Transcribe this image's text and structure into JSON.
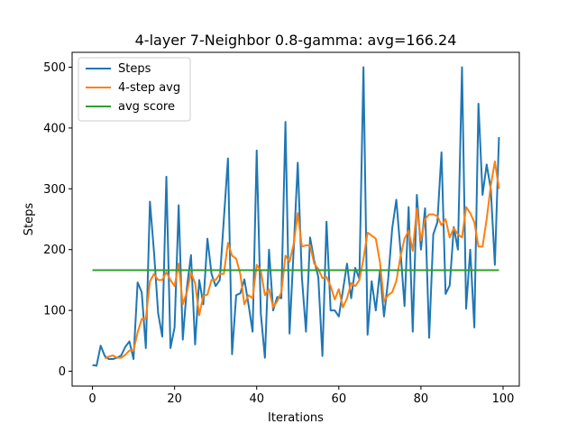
{
  "chart_data": {
    "type": "line",
    "title": "4-layer 7-Neighbor 0.8-gamma: avg=166.24",
    "xlabel": "Iterations",
    "ylabel": "Steps",
    "xlim": [
      -4.95,
      103.95
    ],
    "ylim": [
      -24.5,
      524.5
    ],
    "xticks": [
      0,
      20,
      40,
      60,
      80,
      100
    ],
    "yticks": [
      0,
      100,
      200,
      300,
      400,
      500
    ],
    "grid": false,
    "legend_position": "top-left",
    "series": [
      {
        "name": "Steps",
        "color": "#1f77b4",
        "x": [
          0,
          1,
          2,
          3,
          4,
          5,
          6,
          7,
          8,
          9,
          10,
          11,
          12,
          13,
          14,
          15,
          16,
          17,
          18,
          19,
          20,
          21,
          22,
          23,
          24,
          25,
          26,
          27,
          28,
          29,
          30,
          31,
          32,
          33,
          34,
          35,
          36,
          37,
          38,
          39,
          40,
          41,
          42,
          43,
          44,
          45,
          46,
          47,
          48,
          49,
          50,
          51,
          52,
          53,
          54,
          55,
          56,
          57,
          58,
          59,
          60,
          61,
          62,
          63,
          64,
          65,
          66,
          67,
          68,
          69,
          70,
          71,
          72,
          73,
          74,
          75,
          76,
          77,
          78,
          79,
          80,
          81,
          82,
          83,
          84,
          85,
          86,
          87,
          88,
          89,
          90,
          91,
          92,
          93,
          94,
          95,
          96,
          97,
          98,
          99
        ],
        "values": [
          10,
          9,
          42,
          25,
          20,
          20,
          22,
          26,
          40,
          49,
          20,
          146,
          130,
          38,
          279,
          195,
          95,
          57,
          320,
          38,
          72,
          273,
          52,
          138,
          191,
          44,
          150,
          110,
          218,
          160,
          140,
          150,
          250,
          350,
          28,
          125,
          128,
          151,
          110,
          65,
          363,
          95,
          22,
          200,
          100,
          122,
          120,
          410,
          62,
          200,
          343,
          155,
          65,
          220,
          182,
          155,
          25,
          246,
          100,
          100,
          90,
          133,
          177,
          120,
          170,
          152,
          500,
          60,
          148,
          100,
          165,
          90,
          150,
          235,
          282,
          200,
          107,
          270,
          65,
          290,
          200,
          268,
          55,
          225,
          245,
          360,
          127,
          141,
          237,
          200,
          500,
          103,
          200,
          72,
          440,
          290,
          340,
          300,
          175,
          385
        ]
      },
      {
        "name": "4-step avg",
        "color": "#ff7f0e",
        "x": [
          3,
          4,
          5,
          6,
          7,
          8,
          9,
          10,
          11,
          12,
          13,
          14,
          15,
          16,
          17,
          18,
          19,
          20,
          21,
          22,
          23,
          24,
          25,
          26,
          27,
          28,
          29,
          30,
          31,
          32,
          33,
          34,
          35,
          36,
          37,
          38,
          39,
          40,
          41,
          42,
          43,
          44,
          45,
          46,
          47,
          48,
          49,
          50,
          51,
          52,
          53,
          54,
          55,
          56,
          57,
          58,
          59,
          60,
          61,
          62,
          63,
          64,
          65,
          66,
          67,
          68,
          69,
          70,
          71,
          72,
          73,
          74,
          75,
          76,
          77,
          78,
          79,
          80,
          81,
          82,
          83,
          84,
          85,
          86,
          87,
          88,
          89,
          90,
          91,
          92,
          93,
          94,
          95,
          96,
          97,
          98,
          99
        ],
        "values": [
          21,
          24,
          26,
          22,
          22,
          27,
          34,
          34,
          64,
          86,
          86,
          148,
          160,
          150,
          150,
          163,
          150,
          140,
          177,
          110,
          130,
          162,
          145,
          92,
          124,
          126,
          150,
          150,
          160,
          160,
          211,
          190,
          185,
          160,
          110,
          125,
          120,
          175,
          165,
          125,
          135,
          105,
          115,
          130,
          190,
          180,
          209,
          260,
          205,
          207,
          207,
          177,
          168,
          153,
          155,
          140,
          118,
          135,
          105,
          120,
          145,
          140,
          150,
          185,
          228,
          223,
          218,
          180,
          115,
          125,
          130,
          148,
          188,
          218,
          231,
          198,
          268,
          215,
          250,
          258,
          258,
          255,
          240,
          250,
          220,
          235,
          225,
          220,
          270,
          260,
          245,
          205,
          205,
          250,
          305,
          345,
          300
        ]
      },
      {
        "name": "avg score",
        "color": "#2ca02c",
        "x": [
          0,
          99
        ],
        "values": [
          166.24,
          166.24
        ]
      }
    ]
  }
}
